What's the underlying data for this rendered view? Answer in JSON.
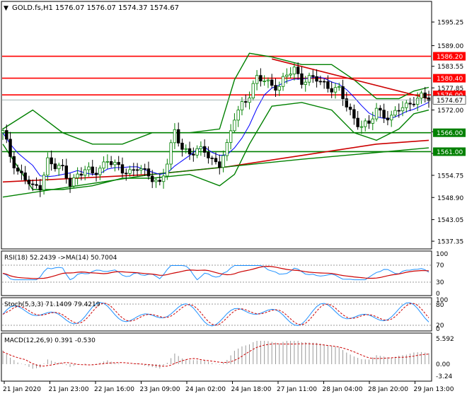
{
  "header": {
    "symbol_line": "GOLD.fs,H1  1576.07 1576.07 1574.37 1574.67"
  },
  "x_labels": [
    "21 Jan 2020",
    "21 Jan 23:00",
    "22 Jan 16:00",
    "23 Jan 09:00",
    "24 Jan 02:00",
    "24 Jan 18:00",
    "27 Jan 11:00",
    "28 Jan 04:00",
    "28 Jan 20:00",
    "29 Jan 13:00"
  ],
  "price_axis": {
    "ticks": [
      "1595.25",
      "1589.00",
      "1583.55",
      "1577.85",
      "1572.00",
      "1566.25",
      "1560.55",
      "1554.75",
      "1548.90",
      "1543.05",
      "1537.35"
    ]
  },
  "levels": [
    {
      "value": 1586.2,
      "label": "1586.20",
      "color": "#ff0000"
    },
    {
      "value": 1580.4,
      "label": "1580.40",
      "color": "#ff0000"
    },
    {
      "value": 1576.0,
      "label": "1576.00",
      "color": "#ff0000"
    },
    {
      "value": 1566.0,
      "label": "1566.00",
      "color": "#008000"
    },
    {
      "value": 1561.0,
      "label": "1561.00",
      "color": "#008000"
    }
  ],
  "current_price": {
    "value": 1574.67,
    "label": "1574.67"
  },
  "rsi": {
    "title": "RSI(18) 52.2439  ->MA(14) 50.7004",
    "ticks": [
      "100",
      "70",
      "30",
      "0"
    ]
  },
  "stoch": {
    "title": "Stoch(5,3,3) 71.1409 79.4219",
    "ticks": [
      "100",
      "80",
      "20",
      "0"
    ]
  },
  "macd": {
    "title": "MACD(12,26,9) 0.391 -0.530",
    "ticks": [
      "5.592",
      "0.00",
      "-3.24"
    ]
  },
  "colors": {
    "bull": "#008000",
    "bear": "#000000",
    "bb": "#008000",
    "ma_blue": "#0000ff",
    "ma_red": "#cc0000",
    "trend": "#cc0000"
  },
  "chart_data": {
    "type": "candlestick",
    "title": "GOLD.fs,H1",
    "ylim": [
      1535.5,
      1600.5
    ],
    "close_path": [
      [
        0,
        1566
      ],
      [
        2,
        1560
      ],
      [
        4,
        1556
      ],
      [
        6,
        1554
      ],
      [
        8,
        1551
      ],
      [
        10,
        1552
      ],
      [
        12,
        1559
      ],
      [
        14,
        1557
      ],
      [
        16,
        1556
      ],
      [
        18,
        1553
      ],
      [
        20,
        1555
      ],
      [
        22,
        1556
      ],
      [
        24,
        1555
      ],
      [
        26,
        1557
      ],
      [
        28,
        1559
      ],
      [
        30,
        1557
      ],
      [
        32,
        1556
      ],
      [
        34,
        1556
      ],
      [
        36,
        1557
      ],
      [
        38,
        1555
      ],
      [
        40,
        1554
      ],
      [
        42,
        1553
      ],
      [
        44,
        1558
      ],
      [
        46,
        1566
      ],
      [
        48,
        1562
      ],
      [
        50,
        1561
      ],
      [
        52,
        1561
      ],
      [
        54,
        1561
      ],
      [
        56,
        1559
      ],
      [
        58,
        1558
      ],
      [
        60,
        1562
      ],
      [
        62,
        1570
      ],
      [
        64,
        1574
      ],
      [
        66,
        1576
      ],
      [
        68,
        1580
      ],
      [
        70,
        1580
      ],
      [
        72,
        1579
      ],
      [
        74,
        1578
      ],
      [
        76,
        1581
      ],
      [
        78,
        1583
      ],
      [
        80,
        1580
      ],
      [
        82,
        1580
      ],
      [
        84,
        1580
      ],
      [
        86,
        1579
      ],
      [
        88,
        1578
      ],
      [
        90,
        1577
      ],
      [
        92,
        1573
      ],
      [
        94,
        1570
      ],
      [
        96,
        1568
      ],
      [
        98,
        1568
      ],
      [
        100,
        1572
      ],
      [
        102,
        1571
      ],
      [
        104,
        1570
      ],
      [
        106,
        1572
      ],
      [
        108,
        1573
      ],
      [
        110,
        1575
      ],
      [
        112,
        1575.5
      ],
      [
        114,
        1574.67
      ]
    ],
    "bollinger_upper": [
      [
        0,
        1567
      ],
      [
        8,
        1572
      ],
      [
        16,
        1566
      ],
      [
        24,
        1563
      ],
      [
        32,
        1563
      ],
      [
        40,
        1566
      ],
      [
        50,
        1566
      ],
      [
        58,
        1567
      ],
      [
        62,
        1580
      ],
      [
        66,
        1587
      ],
      [
        72,
        1586
      ],
      [
        80,
        1584
      ],
      [
        88,
        1584
      ],
      [
        94,
        1580
      ],
      [
        100,
        1575
      ],
      [
        106,
        1575
      ],
      [
        110,
        1577
      ],
      [
        114,
        1578
      ]
    ],
    "bollinger_lower": [
      [
        0,
        1563
      ],
      [
        8,
        1551
      ],
      [
        16,
        1551
      ],
      [
        24,
        1552
      ],
      [
        32,
        1554
      ],
      [
        40,
        1554
      ],
      [
        50,
        1555
      ],
      [
        58,
        1552
      ],
      [
        62,
        1555
      ],
      [
        66,
        1563
      ],
      [
        72,
        1573
      ],
      [
        80,
        1574
      ],
      [
        88,
        1572
      ],
      [
        94,
        1566
      ],
      [
        100,
        1564
      ],
      [
        106,
        1567
      ],
      [
        110,
        1571
      ],
      [
        114,
        1572
      ]
    ],
    "ma_slow": [
      [
        0,
        1553
      ],
      [
        20,
        1554
      ],
      [
        40,
        1555
      ],
      [
        60,
        1557
      ],
      [
        80,
        1560
      ],
      [
        100,
        1563
      ],
      [
        114,
        1564
      ]
    ],
    "trendline_support": [
      [
        0,
        1549
      ],
      [
        40,
        1555
      ],
      [
        80,
        1559
      ],
      [
        114,
        1562
      ]
    ],
    "trendline_resistance": [
      [
        72,
        1585.5
      ],
      [
        114,
        1575
      ]
    ]
  }
}
